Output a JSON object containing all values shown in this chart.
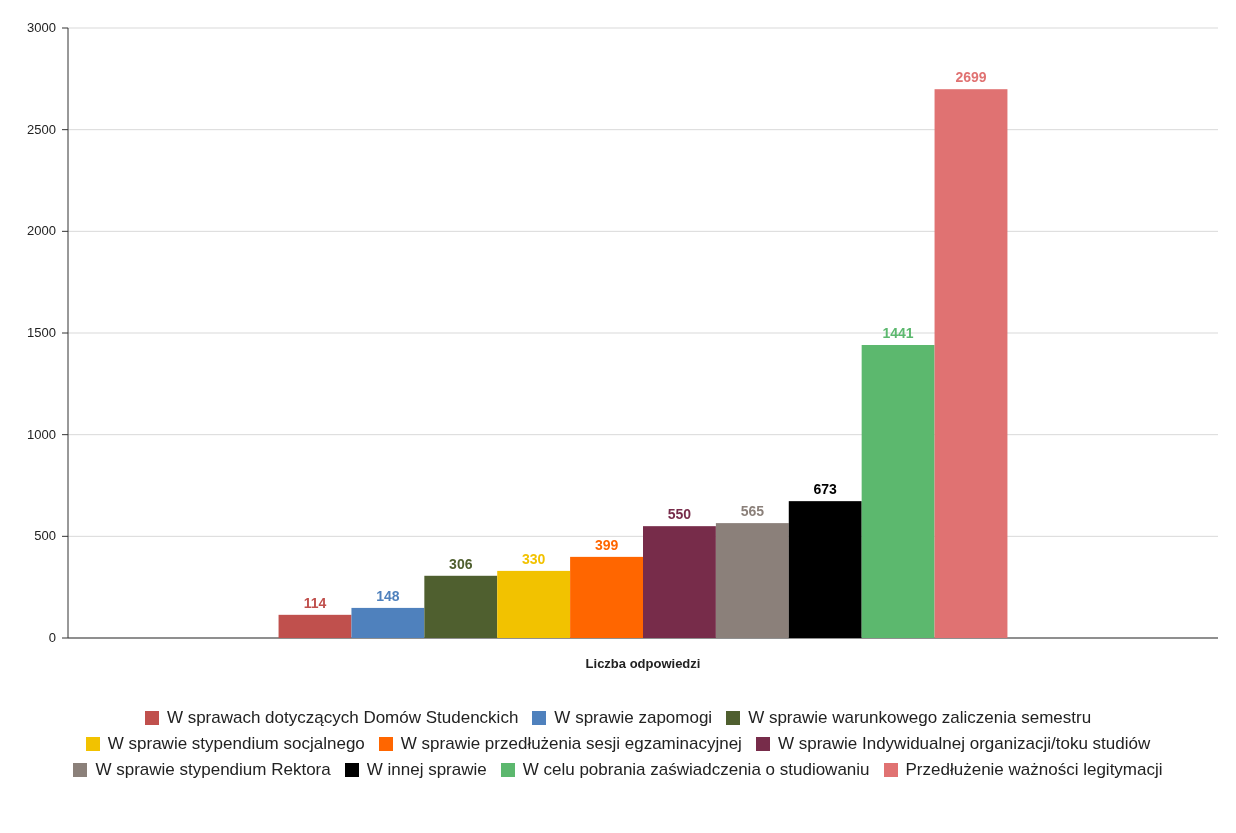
{
  "chart_data": {
    "type": "bar",
    "categories": [
      "Liczba odpowiedzi"
    ],
    "series": [
      {
        "name": "W sprawach dotyczących Domów Studenckich",
        "color": "#c0504d",
        "values": [
          114
        ]
      },
      {
        "name": "W sprawie zapomogi",
        "color": "#4f81bd",
        "values": [
          148
        ]
      },
      {
        "name": "W sprawie warunkowego zaliczenia semestru",
        "color": "#4f5f2f",
        "values": [
          306
        ]
      },
      {
        "name": "W sprawie stypendium socjalnego",
        "color": "#f2c200",
        "values": [
          330
        ]
      },
      {
        "name": "W sprawie przedłużenia sesji egzaminacyjnej",
        "color": "#ff6600",
        "values": [
          399
        ]
      },
      {
        "name": "W sprawie Indywidualnej organizacji/toku studiów",
        "color": "#772c4a",
        "values": [
          550
        ]
      },
      {
        "name": "W sprawie stypendium Rektora",
        "color": "#8b807a",
        "values": [
          565
        ]
      },
      {
        "name": "W innej sprawie",
        "color": "#000000",
        "values": [
          673
        ]
      },
      {
        "name": "W celu pobrania zaświadczenia o studiowaniu",
        "color": "#5cb86e",
        "values": [
          1441
        ]
      },
      {
        "name": "Przedłużenie ważności legitymacji",
        "color": "#e07272",
        "values": [
          2699
        ]
      }
    ],
    "ylim": [
      0,
      3000
    ],
    "yticks": [
      0,
      500,
      1000,
      1500,
      2000,
      2500,
      3000
    ],
    "grid": "y",
    "legend": "bottom",
    "data_labels": true
  }
}
